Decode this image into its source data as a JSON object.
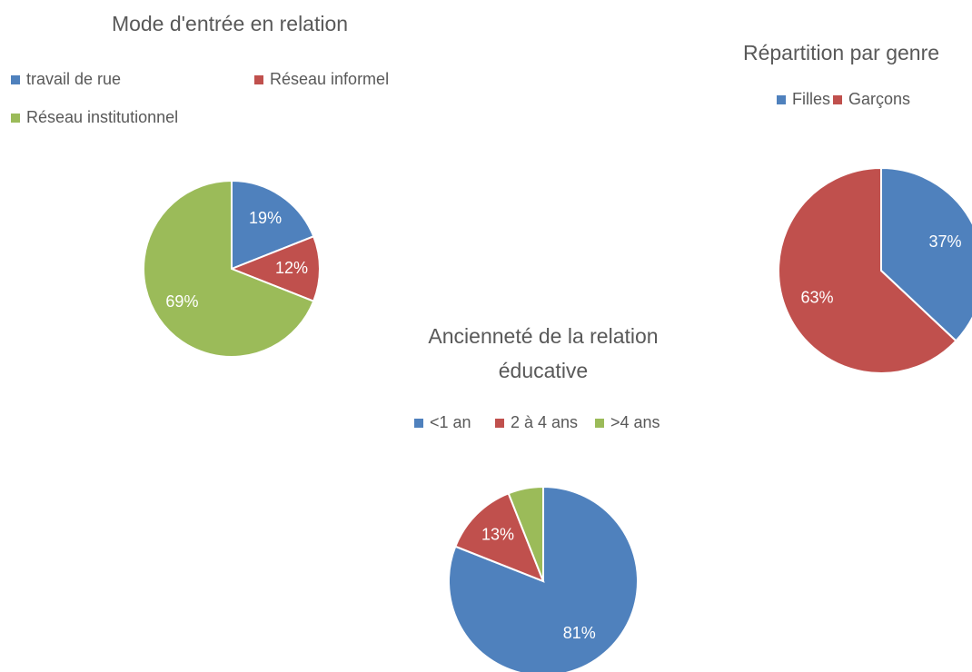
{
  "chart_data": [
    {
      "type": "pie",
      "title": "Mode d'entrée en relation",
      "categories": [
        "travail de rue",
        "Réseau informel",
        "Réseau institutionnel"
      ],
      "values": [
        19,
        12,
        69
      ],
      "value_labels": [
        "19%",
        "12%",
        "69%"
      ],
      "colors": [
        "#4f81bd",
        "#c0504d",
        "#9bbb59"
      ]
    },
    {
      "type": "pie",
      "title": "Répartition par genre",
      "categories": [
        "Filles",
        "Garçons"
      ],
      "values": [
        37,
        63
      ],
      "value_labels": [
        "37%",
        "63%"
      ],
      "colors": [
        "#4f81bd",
        "#c0504d"
      ]
    },
    {
      "type": "pie",
      "title": "Ancienneté de la relation éducative",
      "categories": [
        "<1 an",
        "2 à 4 ans",
        ">4 ans"
      ],
      "values": [
        81,
        13,
        6
      ],
      "value_labels": [
        "81%",
        "13%",
        null
      ],
      "colors": [
        "#4f81bd",
        "#c0504d",
        "#9bbb59"
      ]
    }
  ]
}
